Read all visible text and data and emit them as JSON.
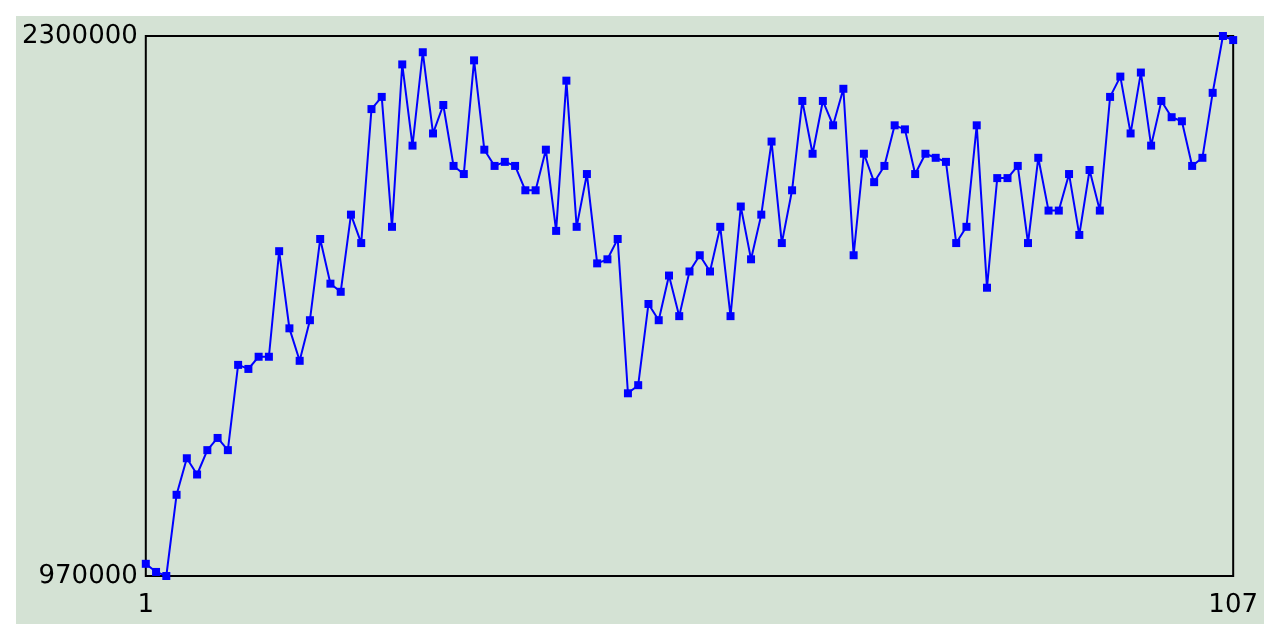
{
  "chart_data": {
    "type": "line",
    "x": [
      1,
      2,
      3,
      4,
      5,
      6,
      7,
      8,
      9,
      10,
      11,
      12,
      13,
      14,
      15,
      16,
      17,
      18,
      19,
      20,
      21,
      22,
      23,
      24,
      25,
      26,
      27,
      28,
      29,
      30,
      31,
      32,
      33,
      34,
      35,
      36,
      37,
      38,
      39,
      40,
      41,
      42,
      43,
      44,
      45,
      46,
      47,
      48,
      49,
      50,
      51,
      52,
      53,
      54,
      55,
      56,
      57,
      58,
      59,
      60,
      61,
      62,
      63,
      64,
      65,
      66,
      67,
      68,
      69,
      70,
      71,
      72,
      73,
      74,
      75,
      76,
      77,
      78,
      79,
      80,
      81,
      82,
      83,
      84,
      85,
      86,
      87,
      88,
      89,
      90,
      91,
      92,
      93,
      94,
      95,
      96,
      97,
      98,
      99,
      100,
      101,
      102,
      103,
      104,
      105,
      106,
      107
    ],
    "series": [
      {
        "color": "#0000ff",
        "values": [
          1000000,
          980000,
          970000,
          1170000,
          1260000,
          1220000,
          1280000,
          1310000,
          1280000,
          1490000,
          1480000,
          1510000,
          1510000,
          1770000,
          1580000,
          1500000,
          1600000,
          1800000,
          1690000,
          1670000,
          1860000,
          1790000,
          2120000,
          2150000,
          1830000,
          2230000,
          2030000,
          2260000,
          2060000,
          2130000,
          1980000,
          1960000,
          2240000,
          2020000,
          1980000,
          1990000,
          1980000,
          1920000,
          1920000,
          2020000,
          1820000,
          2190000,
          1830000,
          1960000,
          1740000,
          1750000,
          1800000,
          1420000,
          1440000,
          1640000,
          1600000,
          1710000,
          1610000,
          1720000,
          1760000,
          1720000,
          1830000,
          1610000,
          1880000,
          1750000,
          1860000,
          2040000,
          1790000,
          1920000,
          2140000,
          2010000,
          2140000,
          2080000,
          2170000,
          1760000,
          2010000,
          1940000,
          1980000,
          2080000,
          2070000,
          1960000,
          2010000,
          2000000,
          1990000,
          1790000,
          1830000,
          2080000,
          1680000,
          1950000,
          1950000,
          1980000,
          1790000,
          2000000,
          1870000,
          1870000,
          1960000,
          1810000,
          1970000,
          1870000,
          2150000,
          2200000,
          2060000,
          2210000,
          2030000,
          2140000,
          2100000,
          2090000,
          1980000,
          2000000,
          2160000,
          2300000,
          2290000
        ]
      }
    ],
    "xlim": [
      1,
      107
    ],
    "xticks": [
      1,
      107
    ],
    "ylim": [
      970000,
      2300000
    ],
    "yticks": [
      970000,
      2300000
    ],
    "grid": false,
    "marker": "square",
    "line_style": "solid"
  }
}
